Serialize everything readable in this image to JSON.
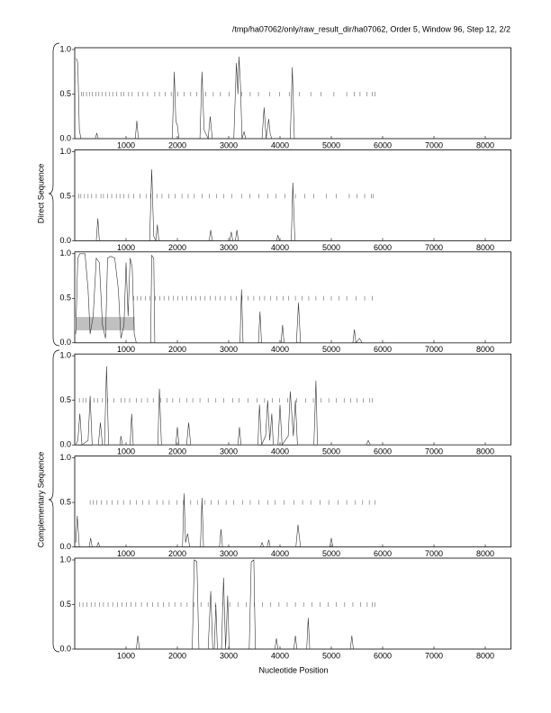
{
  "chart_data": {
    "type": "line",
    "title": "/tmp/ha07062/only/raw_result_dir/ha07062, Order 5, Window 96, Step 12, 2/2",
    "x_label": "Nucleotide Position",
    "groups": [
      "Direct Sequence",
      "Complementary Sequence"
    ],
    "xlim": [
      0,
      8500
    ],
    "xticks": [
      1000,
      2000,
      3000,
      4000,
      5000,
      6000,
      7000,
      8000
    ],
    "ylim": [
      0,
      1.02
    ],
    "yticks": [
      {
        "value": 0,
        "label": "0.0"
      },
      0.5,
      {
        "value": 1,
        "label": "1.0"
      }
    ],
    "rug_y": 0.5,
    "color": "#333333",
    "panels": [
      {
        "x": [
          30,
          60,
          90,
          120,
          400,
          430,
          460,
          1180,
          1210,
          1240,
          1900,
          1940,
          1970,
          2000,
          2030,
          2440,
          2480,
          2520,
          2600,
          2640,
          2680,
          3100,
          3150,
          3180,
          3200,
          3230,
          3260,
          3300,
          3330,
          3650,
          3690,
          3730,
          3780,
          3810,
          3840,
          4200,
          4240,
          4280,
          4500,
          8500
        ],
        "values": [
          0.9,
          0.85,
          0.1,
          0,
          0,
          0.06,
          0,
          0,
          0.2,
          0,
          0,
          0.75,
          0.2,
          0.15,
          0,
          0,
          0.75,
          0.1,
          0,
          0.25,
          0,
          0,
          0.85,
          0.5,
          0.92,
          0.6,
          0,
          0.08,
          0,
          0,
          0.35,
          0,
          0.22,
          0.05,
          0,
          0,
          0.8,
          0,
          0,
          0
        ],
        "marks": [
          130,
          170,
          230,
          290,
          340,
          410,
          470,
          530,
          600,
          680,
          740,
          820,
          900,
          960,
          1050,
          1120,
          1240,
          1330,
          1420,
          1560,
          1650,
          1760,
          1880,
          2010,
          2130,
          2260,
          2380,
          2550,
          2700,
          2840,
          3010,
          3250,
          3420,
          3580,
          3800,
          3990,
          4180,
          4380,
          4600,
          4800,
          5050,
          5300,
          5450,
          5560,
          5690,
          5800,
          5850
        ]
      },
      {
        "x": [
          30,
          420,
          450,
          480,
          1460,
          1500,
          1540,
          1580,
          1610,
          1640,
          2620,
          2650,
          2680,
          3020,
          3050,
          3080,
          3130,
          3160,
          3190,
          3930,
          3960,
          3990,
          4220,
          4250,
          4290,
          8500
        ],
        "values": [
          0,
          0,
          0.25,
          0,
          0,
          0.8,
          0.05,
          0,
          0.18,
          0,
          0,
          0.12,
          0,
          0,
          0.1,
          0,
          0,
          0.12,
          0,
          0,
          0.06,
          0,
          0,
          0.65,
          0,
          0
        ],
        "marks": [
          80,
          120,
          190,
          260,
          330,
          420,
          510,
          560,
          640,
          720,
          810,
          880,
          960,
          1050,
          1150,
          1270,
          1390,
          1480,
          1600,
          1700,
          1830,
          1960,
          2090,
          2210,
          2330,
          2480,
          2620,
          2760,
          2900,
          3060,
          3250,
          3410,
          3590,
          3760,
          3920,
          4100,
          4300,
          4480,
          4660,
          4900,
          5100,
          5350,
          5500,
          5650,
          5780,
          5820
        ]
      },
      {
        "x": [
          20,
          60,
          100,
          200,
          260,
          300,
          360,
          420,
          480,
          540,
          600,
          640,
          700,
          780,
          850,
          900,
          960,
          1000,
          1040,
          1080,
          1120,
          1160,
          1200,
          1480,
          1500,
          1540,
          1560,
          3220,
          3250,
          3280,
          3580,
          3610,
          3640,
          4020,
          4050,
          4080,
          4320,
          4360,
          4400,
          5420,
          5450,
          5480,
          5550,
          5600,
          8500
        ],
        "values": [
          0.1,
          0.95,
          1.0,
          1.0,
          0.6,
          0.1,
          0.3,
          0.95,
          0.9,
          0.2,
          0.05,
          0.95,
          0.97,
          0.95,
          0.6,
          0.05,
          0.2,
          0.9,
          0.3,
          0.95,
          0.85,
          0.1,
          0,
          0,
          0.98,
          0.95,
          0,
          0,
          0.6,
          0,
          0,
          0.35,
          0,
          0,
          0.2,
          0,
          0,
          0.45,
          0,
          0,
          0.15,
          0,
          0.05,
          0,
          0
        ],
        "marks": [
          1150,
          1220,
          1290,
          1380,
          1460,
          1570,
          1660,
          1740,
          1830,
          1920,
          2010,
          2100,
          2180,
          2270,
          2360,
          2450,
          2540,
          2640,
          2740,
          2830,
          2930,
          3040,
          3150,
          3260,
          3380,
          3490,
          3600,
          3700,
          3820,
          3940,
          4060,
          4170,
          4300,
          4430,
          4560,
          4700,
          4850,
          5000,
          5150,
          5300,
          5480,
          5650,
          5800
        ]
      },
      {
        "x": [
          20,
          60,
          100,
          140,
          260,
          300,
          340,
          460,
          500,
          540,
          580,
          620,
          660,
          880,
          900,
          930,
          1080,
          1110,
          1140,
          1620,
          1650,
          1690,
          1970,
          2000,
          2030,
          2180,
          2220,
          2260,
          3180,
          3210,
          3240,
          3570,
          3600,
          3640,
          3720,
          3760,
          3800,
          3840,
          3870,
          3960,
          4000,
          4040,
          4160,
          4200,
          4260,
          4300,
          4340,
          4660,
          4700,
          4730,
          5680,
          5720,
          5760,
          8500
        ],
        "values": [
          0,
          0.05,
          0.35,
          0,
          0.05,
          0.55,
          0,
          0,
          0.25,
          0,
          0,
          0.88,
          0,
          0,
          0.1,
          0,
          0,
          0.35,
          0,
          0,
          0.63,
          0,
          0,
          0.2,
          0,
          0,
          0.25,
          0,
          0,
          0.2,
          0,
          0,
          0.45,
          0,
          0.1,
          0.5,
          0.05,
          0.35,
          0,
          0,
          0.45,
          0,
          0.1,
          0.6,
          0.1,
          0.5,
          0,
          0,
          0.72,
          0,
          0,
          0.05,
          0,
          0
        ],
        "marks": [
          90,
          160,
          220,
          300,
          380,
          450,
          540,
          640,
          760,
          900,
          980,
          1070,
          1200,
          1300,
          1420,
          1530,
          1680,
          1800,
          1910,
          2040,
          2180,
          2300,
          2440,
          2600,
          2750,
          2900,
          3080,
          3200,
          3380,
          3550,
          3700,
          3850,
          3990,
          4150,
          4320,
          4500,
          4650,
          4800,
          4950,
          5100,
          5250,
          5380,
          5500,
          5620,
          5750,
          5800
        ]
      },
      {
        "x": [
          20,
          50,
          90,
          280,
          310,
          340,
          430,
          460,
          490,
          2100,
          2130,
          2160,
          2200,
          2240,
          2450,
          2480,
          2510,
          2820,
          2850,
          2880,
          3620,
          3650,
          3680,
          3750,
          3780,
          3810,
          4310,
          4350,
          4400,
          4970,
          5000,
          5030,
          8500
        ],
        "values": [
          0.05,
          0.35,
          0,
          0,
          0.1,
          0,
          0,
          0.05,
          0,
          0,
          0.6,
          0.05,
          0.15,
          0,
          0,
          0.55,
          0,
          0,
          0.2,
          0,
          0,
          0.05,
          0,
          0,
          0.08,
          0,
          0,
          0.25,
          0,
          0,
          0.1,
          0,
          0
        ],
        "marks": [
          300,
          360,
          430,
          520,
          630,
          730,
          840,
          950,
          1080,
          1200,
          1320,
          1450,
          1600,
          1720,
          1840,
          1990,
          2120,
          2260,
          2390,
          2530,
          2660,
          2800,
          2950,
          3100,
          3270,
          3420,
          3590,
          3760,
          3900,
          4080,
          4270,
          4440,
          4600,
          4780,
          4950,
          5130,
          5300,
          5470,
          5610,
          5740,
          5850
        ]
      },
      {
        "x": [
          20,
          1200,
          1230,
          1260,
          2290,
          2330,
          2380,
          2420,
          2600,
          2650,
          2690,
          2720,
          2750,
          2780,
          2860,
          2900,
          2940,
          2980,
          3010,
          3040,
          3400,
          3440,
          3490,
          3520,
          3900,
          3930,
          3960,
          4270,
          4300,
          4330,
          4520,
          4550,
          4580,
          5370,
          5400,
          5430,
          8500
        ],
        "values": [
          0,
          0,
          0.15,
          0,
          0,
          1.0,
          0.98,
          0,
          0,
          0.65,
          0,
          0,
          0.5,
          0,
          0,
          0.8,
          0,
          0.6,
          0,
          0,
          0,
          0.98,
          1.0,
          0,
          0,
          0.12,
          0,
          0,
          0.15,
          0,
          0,
          0.35,
          0,
          0,
          0.15,
          0,
          0
        ],
        "marks": [
          100,
          160,
          240,
          320,
          400,
          480,
          560,
          650,
          740,
          830,
          920,
          1010,
          1100,
          1190,
          1300,
          1410,
          1520,
          1620,
          1730,
          1840,
          1950,
          2070,
          2190,
          2320,
          2460,
          2600,
          2740,
          2880,
          3020,
          3180,
          3340,
          3500,
          3660,
          3820,
          3980,
          4140,
          4300,
          4460,
          4620,
          4780,
          4940,
          5100,
          5260,
          5420,
          5570,
          5700,
          5800,
          5850
        ]
      }
    ],
    "highlight": {
      "panel": 2,
      "x": [
        0,
        1170
      ],
      "y": [
        0.14,
        0.29
      ],
      "color": "#c0c0c0"
    }
  }
}
